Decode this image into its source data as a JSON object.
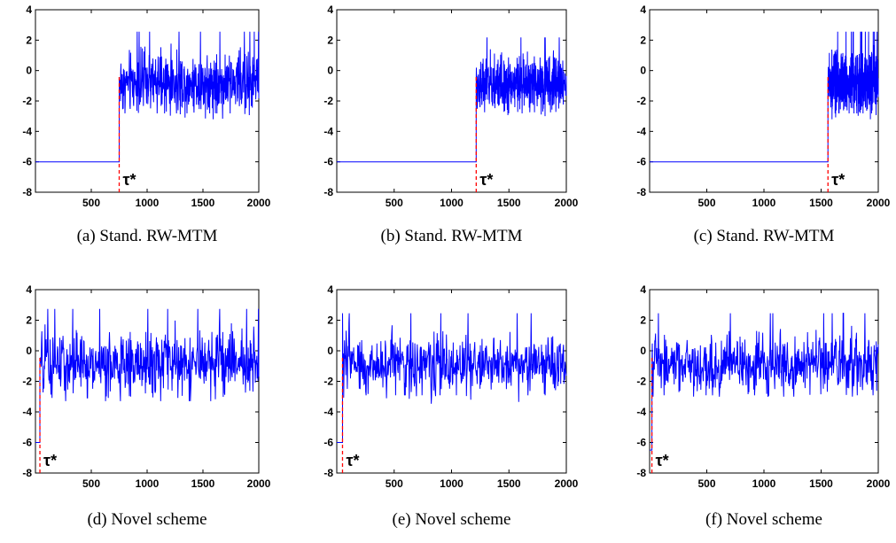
{
  "chart_data": [
    {
      "type": "line",
      "caption": "(a) Stand. RW-MTM",
      "xlim": [
        0,
        2000
      ],
      "ylim": [
        -8,
        4
      ],
      "xticks": [
        500,
        1000,
        1500,
        2000
      ],
      "yticks": [
        4,
        2,
        0,
        -2,
        -4,
        -6,
        -8
      ],
      "series": [
        {
          "color": "#0000ff",
          "flat_value": -6,
          "jump_at": 750,
          "mean_after": -0.8,
          "spread_after": 1.2,
          "min_after": -3.2,
          "max_after": 3.0
        }
      ],
      "marker": {
        "x": 750,
        "label": "τ*",
        "color": "#ff0000",
        "style": "dashed"
      }
    },
    {
      "type": "line",
      "caption": "(b) Stand. RW-MTM",
      "xlim": [
        0,
        2000
      ],
      "ylim": [
        -8,
        4
      ],
      "xticks": [
        500,
        1000,
        1500,
        2000
      ],
      "yticks": [
        4,
        2,
        0,
        -2,
        -4,
        -6,
        -8
      ],
      "series": [
        {
          "color": "#0000ff",
          "flat_value": -6,
          "jump_at": 1215,
          "mean_after": -0.9,
          "spread_after": 1.1,
          "min_after": -3.7,
          "max_after": 3.0
        }
      ],
      "marker": {
        "x": 1215,
        "label": "τ*",
        "color": "#ff0000",
        "style": "dashed"
      }
    },
    {
      "type": "line",
      "caption": "(c) Stand. RW-MTM",
      "xlim": [
        0,
        2000
      ],
      "ylim": [
        -8,
        4
      ],
      "xticks": [
        500,
        1000,
        1500,
        2000
      ],
      "yticks": [
        4,
        2,
        0,
        -2,
        -4,
        -6,
        -8
      ],
      "series": [
        {
          "color": "#0000ff",
          "flat_value": -6,
          "jump_at": 1560,
          "mean_after": -0.8,
          "spread_after": 1.2,
          "min_after": -3.2,
          "max_after": 3.5
        }
      ],
      "marker": {
        "x": 1560,
        "label": "τ*",
        "color": "#ff0000",
        "style": "dashed"
      }
    },
    {
      "type": "line",
      "caption": "(d) Novel scheme",
      "xlim": [
        0,
        2000
      ],
      "ylim": [
        -8,
        4
      ],
      "xticks": [
        500,
        1000,
        1500,
        2000
      ],
      "yticks": [
        4,
        2,
        0,
        -2,
        -4,
        -6,
        -8
      ],
      "series": [
        {
          "color": "#0000ff",
          "flat_value": -6,
          "jump_at": 40,
          "mean_after": -0.9,
          "spread_after": 1.3,
          "min_after": -3.3,
          "max_after": 3.5
        }
      ],
      "marker": {
        "x": 40,
        "label": "τ*",
        "color": "#ff0000",
        "style": "dashed"
      }
    },
    {
      "type": "line",
      "caption": "(e) Novel scheme",
      "xlim": [
        0,
        2000
      ],
      "ylim": [
        -8,
        4
      ],
      "xticks": [
        500,
        1000,
        1500,
        2000
      ],
      "yticks": [
        4,
        2,
        0,
        -2,
        -4,
        -6,
        -8
      ],
      "series": [
        {
          "color": "#0000ff",
          "flat_value": -6,
          "jump_at": 50,
          "mean_after": -0.9,
          "spread_after": 1.2,
          "min_after": -3.6,
          "max_after": 3.5
        }
      ],
      "marker": {
        "x": 50,
        "label": "τ*",
        "color": "#ff0000",
        "style": "dashed"
      }
    },
    {
      "type": "line",
      "caption": "(f) Novel scheme",
      "xlim": [
        0,
        2000
      ],
      "ylim": [
        -8,
        4
      ],
      "xticks": [
        500,
        1000,
        1500,
        2000
      ],
      "yticks": [
        4,
        2,
        0,
        -2,
        -4,
        -6,
        -8
      ],
      "series": [
        {
          "color": "#0000ff",
          "flat_value": -6.5,
          "jump_at": 20,
          "mean_after": -0.9,
          "spread_after": 1.2,
          "min_after": -3.0,
          "max_after": 3.4
        }
      ],
      "marker": {
        "x": 20,
        "label": "τ*",
        "color": "#ff0000",
        "style": "dashed"
      }
    }
  ]
}
